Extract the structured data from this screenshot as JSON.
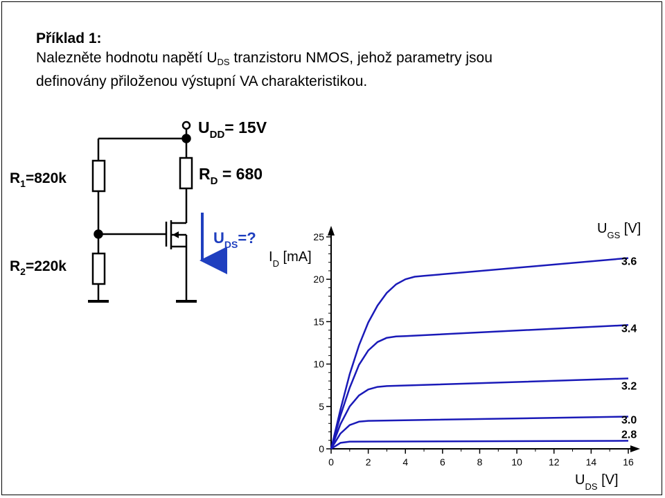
{
  "task": {
    "title": "Příklad 1:",
    "line1_pre": "Nalezněte hodnotu napětí U",
    "line1_sub": "DS",
    "line1_post": " tranzistoru NMOS, jehož parametry jsou",
    "line2": "definovány přiloženou výstupní VA charakteristikou."
  },
  "circuit": {
    "udd_main": "U",
    "udd_sub": "DD",
    "udd_value": "= 15V",
    "r1_main": "R",
    "r1_sub": "1",
    "r1_value": "=820k",
    "r2_main": "R",
    "r2_sub": "2",
    "r2_value": "=220k",
    "rd_main": "R",
    "rd_sub": "D",
    "rd_value": " = 680",
    "uds_main": "U",
    "uds_sub": "DS",
    "uds_value": "=?",
    "arrow_color": "#1f3fbf",
    "uds_color": "#1f3fbf"
  },
  "chart_data": {
    "type": "line",
    "xlabel_main": "U",
    "xlabel_sub": "DS",
    "xlabel_unit": " [V]",
    "ylabel_main": "I",
    "ylabel_sub": "D",
    "ylabel_unit": " [mA]",
    "legend_title_main": "U",
    "legend_title_sub": "GS",
    "legend_title_unit": " [V]",
    "xlim": [
      0,
      16
    ],
    "ylim": [
      0,
      25
    ],
    "x_ticks": [
      "0",
      "2",
      "4",
      "6",
      "8",
      "10",
      "12",
      "14",
      "16"
    ],
    "y_ticks": [
      "0",
      "5",
      "10",
      "15",
      "20",
      "25"
    ],
    "line_color": "#1a1ab8",
    "series": [
      {
        "name": "3.6",
        "x": [
          0,
          0.5,
          1,
          1.5,
          2,
          2.5,
          3,
          3.5,
          4,
          4.5,
          5,
          16
        ],
        "y": [
          0,
          4.6,
          8.8,
          12.2,
          14.9,
          16.9,
          18.4,
          19.4,
          20.0,
          20.3,
          20.4,
          22.5
        ]
      },
      {
        "name": "3.4",
        "x": [
          0,
          0.5,
          1,
          1.5,
          2,
          2.5,
          3,
          3.5,
          4,
          16
        ],
        "y": [
          0,
          3.9,
          7.2,
          9.9,
          11.6,
          12.6,
          13.1,
          13.25,
          13.3,
          14.6
        ]
      },
      {
        "name": "3.2",
        "x": [
          0,
          0.5,
          1,
          1.5,
          2,
          2.5,
          3,
          16
        ],
        "y": [
          0,
          2.9,
          5.0,
          6.3,
          7.0,
          7.3,
          7.4,
          8.3
        ]
      },
      {
        "name": "3.0",
        "x": [
          0,
          0.5,
          1,
          1.5,
          2,
          16
        ],
        "y": [
          0,
          1.8,
          2.8,
          3.2,
          3.3,
          3.8
        ]
      },
      {
        "name": "2.8",
        "x": [
          0,
          0.5,
          1,
          16
        ],
        "y": [
          0,
          0.7,
          0.85,
          0.95
        ]
      }
    ]
  }
}
